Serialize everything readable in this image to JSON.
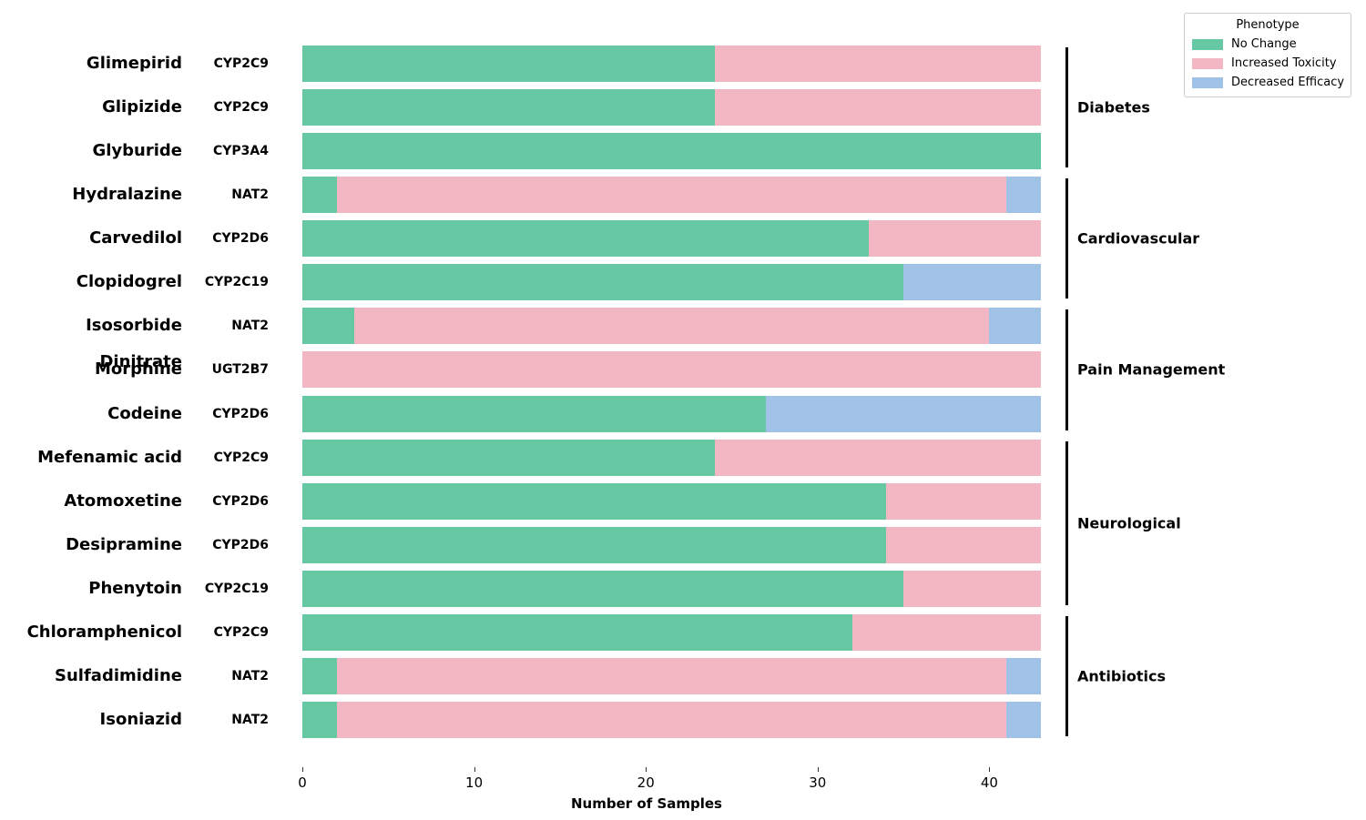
{
  "chart_data": {
    "type": "bar",
    "orientation": "horizontal",
    "stacked": true,
    "title": "",
    "xlabel": "Number of Samples",
    "xlim": [
      0,
      43
    ],
    "xticks": [
      0,
      10,
      20,
      30,
      40
    ],
    "grid": false,
    "colors": {
      "no_change": "#66c9a4",
      "increased_toxicity": "#f3b6c3",
      "decreased_efficacy": "#a1c2e7"
    },
    "legend": {
      "title": "Phenotype",
      "position": "upper right",
      "entries": [
        {
          "label": "No Change",
          "color": "#66c9a4"
        },
        {
          "label": "Increased Toxicity",
          "color": "#f3b6c3"
        },
        {
          "label": "Decreased Efficacy",
          "color": "#a1c2e7"
        }
      ]
    },
    "series": [
      {
        "name": "No Change",
        "key": "no_change",
        "values": [
          24,
          24,
          43,
          2,
          33,
          35,
          3,
          0,
          27,
          24,
          34,
          34,
          35,
          32,
          2,
          2
        ]
      },
      {
        "name": "Increased Toxicity",
        "key": "increased_toxicity",
        "values": [
          19,
          19,
          0,
          39,
          10,
          0,
          37,
          43,
          0,
          19,
          9,
          9,
          8,
          11,
          39,
          39
        ]
      },
      {
        "name": "Decreased Efficacy",
        "key": "decreased_efficacy",
        "values": [
          0,
          0,
          0,
          2,
          0,
          8,
          3,
          0,
          16,
          0,
          0,
          0,
          0,
          0,
          2,
          2
        ]
      }
    ],
    "rows": [
      {
        "drug": "Glimepirid",
        "gene": "CYP2C9",
        "no_change": 24,
        "increased_toxicity": 19,
        "decreased_efficacy": 0
      },
      {
        "drug": "Glipizide",
        "gene": "CYP2C9",
        "no_change": 24,
        "increased_toxicity": 19,
        "decreased_efficacy": 0
      },
      {
        "drug": "Glyburide",
        "gene": "CYP3A4",
        "no_change": 43,
        "increased_toxicity": 0,
        "decreased_efficacy": 0
      },
      {
        "drug": "Hydralazine",
        "gene": "NAT2",
        "no_change": 2,
        "increased_toxicity": 39,
        "decreased_efficacy": 2
      },
      {
        "drug": "Carvedilol",
        "gene": "CYP2D6",
        "no_change": 33,
        "increased_toxicity": 10,
        "decreased_efficacy": 0
      },
      {
        "drug": "Clopidogrel",
        "gene": "CYP2C19",
        "no_change": 35,
        "increased_toxicity": 0,
        "decreased_efficacy": 8
      },
      {
        "drug": "Isosorbide Dinitrate",
        "gene": "NAT2",
        "no_change": 3,
        "increased_toxicity": 37,
        "decreased_efficacy": 3
      },
      {
        "drug": "Morphine",
        "gene": "UGT2B7",
        "no_change": 0,
        "increased_toxicity": 43,
        "decreased_efficacy": 0
      },
      {
        "drug": "Codeine",
        "gene": "CYP2D6",
        "no_change": 27,
        "increased_toxicity": 0,
        "decreased_efficacy": 16
      },
      {
        "drug": "Mefenamic acid",
        "gene": "CYP2C9",
        "no_change": 24,
        "increased_toxicity": 19,
        "decreased_efficacy": 0
      },
      {
        "drug": "Atomoxetine",
        "gene": "CYP2D6",
        "no_change": 34,
        "increased_toxicity": 9,
        "decreased_efficacy": 0
      },
      {
        "drug": "Desipramine",
        "gene": "CYP2D6",
        "no_change": 34,
        "increased_toxicity": 9,
        "decreased_efficacy": 0
      },
      {
        "drug": "Phenytoin",
        "gene": "CYP2C19",
        "no_change": 35,
        "increased_toxicity": 8,
        "decreased_efficacy": 0
      },
      {
        "drug": "Chloramphenicol",
        "gene": "CYP2C9",
        "no_change": 32,
        "increased_toxicity": 11,
        "decreased_efficacy": 0
      },
      {
        "drug": "Sulfadimidine",
        "gene": "NAT2",
        "no_change": 2,
        "increased_toxicity": 39,
        "decreased_efficacy": 2
      },
      {
        "drug": "Isoniazid",
        "gene": "NAT2",
        "no_change": 2,
        "increased_toxicity": 39,
        "decreased_efficacy": 2
      }
    ],
    "groups": [
      {
        "label": "Diabetes",
        "start_row": 0,
        "end_row": 2
      },
      {
        "label": "Cardiovascular",
        "start_row": 3,
        "end_row": 5
      },
      {
        "label": "Pain Management",
        "start_row": 6,
        "end_row": 8
      },
      {
        "label": "Neurological",
        "start_row": 9,
        "end_row": 12
      },
      {
        "label": "Antibiotics",
        "start_row": 13,
        "end_row": 15
      }
    ]
  }
}
